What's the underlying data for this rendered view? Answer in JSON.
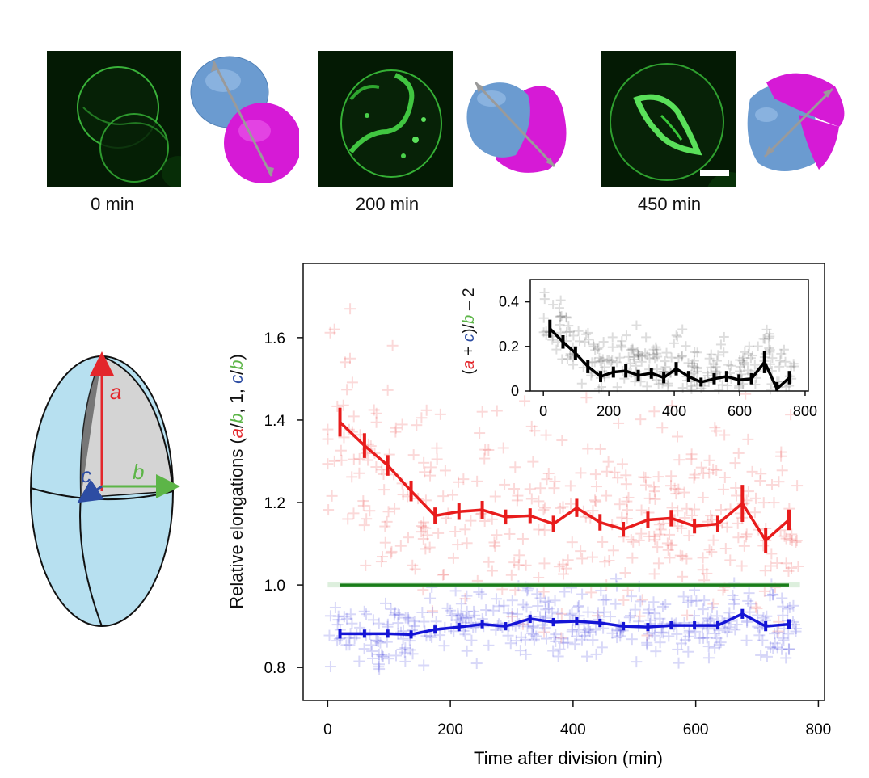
{
  "timepoints": [
    {
      "label": "0 min"
    },
    {
      "label": "200 min"
    },
    {
      "label": "450 min"
    }
  ],
  "ellipsoid": {
    "label_a": "a",
    "label_b": "b",
    "label_c": "c",
    "color_a": "#e3262b",
    "color_b": "#5cb547",
    "color_c": "#2d4da3",
    "fill": "#b7e0f0"
  },
  "chart_data": {
    "type": "scatter",
    "xlabel": "Time after division (min)",
    "ylabel_parts": [
      {
        "t": "Relative elongations (",
        "c": "#111111",
        "i": false
      },
      {
        "t": "a",
        "c": "#e3262b",
        "i": true
      },
      {
        "t": "/",
        "c": "#111111",
        "i": false
      },
      {
        "t": "b",
        "c": "#5cb547",
        "i": true
      },
      {
        "t": ", 1, ",
        "c": "#111111",
        "i": false
      },
      {
        "t": "c",
        "c": "#2d4da3",
        "i": true
      },
      {
        "t": "/",
        "c": "#111111",
        "i": false
      },
      {
        "t": "b",
        "c": "#5cb547",
        "i": true
      },
      {
        "t": ")",
        "c": "#111111",
        "i": false
      }
    ],
    "xlim": [
      -40,
      810
    ],
    "ylim": [
      0.72,
      1.78
    ],
    "xticks": [
      0,
      200,
      400,
      600,
      800
    ],
    "yticks": [
      0.8,
      1.0,
      1.2,
      1.4,
      1.6
    ],
    "ytick_labels": [
      "0.8",
      "1.0",
      "1.2",
      "1.4",
      "1.6"
    ],
    "series": [
      {
        "name": "a/b",
        "color": "#e81c1c",
        "x": [
          20,
          60,
          98,
          136,
          175,
          214,
          252,
          290,
          330,
          368,
          406,
          444,
          482,
          522,
          560,
          598,
          636,
          676,
          714,
          752
        ],
        "y": [
          1.395,
          1.338,
          1.29,
          1.228,
          1.168,
          1.178,
          1.182,
          1.165,
          1.168,
          1.148,
          1.187,
          1.152,
          1.135,
          1.158,
          1.162,
          1.143,
          1.148,
          1.198,
          1.108,
          1.158
        ],
        "err": [
          0.035,
          0.03,
          0.025,
          0.025,
          0.02,
          0.02,
          0.022,
          0.018,
          0.018,
          0.02,
          0.022,
          0.02,
          0.018,
          0.02,
          0.02,
          0.018,
          0.02,
          0.045,
          0.03,
          0.025
        ]
      },
      {
        "name": "1",
        "color": "#1a7d1a",
        "x": [
          20,
          752
        ],
        "y": [
          1.0,
          1.0
        ],
        "err": []
      },
      {
        "name": "c/b",
        "color": "#1414d6",
        "x": [
          20,
          60,
          98,
          136,
          175,
          214,
          252,
          290,
          330,
          368,
          406,
          444,
          482,
          522,
          560,
          598,
          636,
          676,
          714,
          752
        ],
        "y": [
          0.882,
          0.882,
          0.882,
          0.88,
          0.892,
          0.898,
          0.905,
          0.9,
          0.918,
          0.91,
          0.912,
          0.908,
          0.9,
          0.898,
          0.902,
          0.902,
          0.902,
          0.93,
          0.9,
          0.905
        ],
        "err": [
          0.012,
          0.01,
          0.01,
          0.01,
          0.01,
          0.01,
          0.01,
          0.01,
          0.01,
          0.01,
          0.01,
          0.01,
          0.01,
          0.01,
          0.01,
          0.01,
          0.01,
          0.012,
          0.012,
          0.012
        ]
      }
    ],
    "inset": {
      "type": "line",
      "ylabel_parts": [
        {
          "t": "(",
          "c": "#111111",
          "i": false
        },
        {
          "t": "a",
          "c": "#e3262b",
          "i": true
        },
        {
          "t": " + ",
          "c": "#111111",
          "i": false
        },
        {
          "t": "c",
          "c": "#2d4da3",
          "i": true
        },
        {
          "t": ")/",
          "c": "#111111",
          "i": false
        },
        {
          "t": "b",
          "c": "#5cb547",
          "i": true
        },
        {
          "t": " – 2",
          "c": "#111111",
          "i": false
        }
      ],
      "xlim": [
        -40,
        810
      ],
      "ylim": [
        0,
        0.5
      ],
      "xticks": [
        0,
        200,
        400,
        600,
        800
      ],
      "yticks": [
        0,
        0.2,
        0.4
      ],
      "ytick_labels": [
        "0",
        "0.2",
        "0.4"
      ],
      "color": "#000000",
      "x": [
        20,
        60,
        98,
        136,
        175,
        214,
        252,
        290,
        330,
        368,
        406,
        444,
        482,
        522,
        560,
        598,
        636,
        676,
        714,
        752
      ],
      "y": [
        0.28,
        0.22,
        0.17,
        0.11,
        0.065,
        0.085,
        0.09,
        0.07,
        0.08,
        0.06,
        0.1,
        0.065,
        0.04,
        0.055,
        0.065,
        0.05,
        0.055,
        0.13,
        0.01,
        0.06
      ],
      "err": [
        0.04,
        0.03,
        0.03,
        0.03,
        0.025,
        0.025,
        0.03,
        0.025,
        0.025,
        0.025,
        0.03,
        0.025,
        0.02,
        0.025,
        0.025,
        0.025,
        0.025,
        0.05,
        0.03,
        0.03
      ]
    }
  }
}
